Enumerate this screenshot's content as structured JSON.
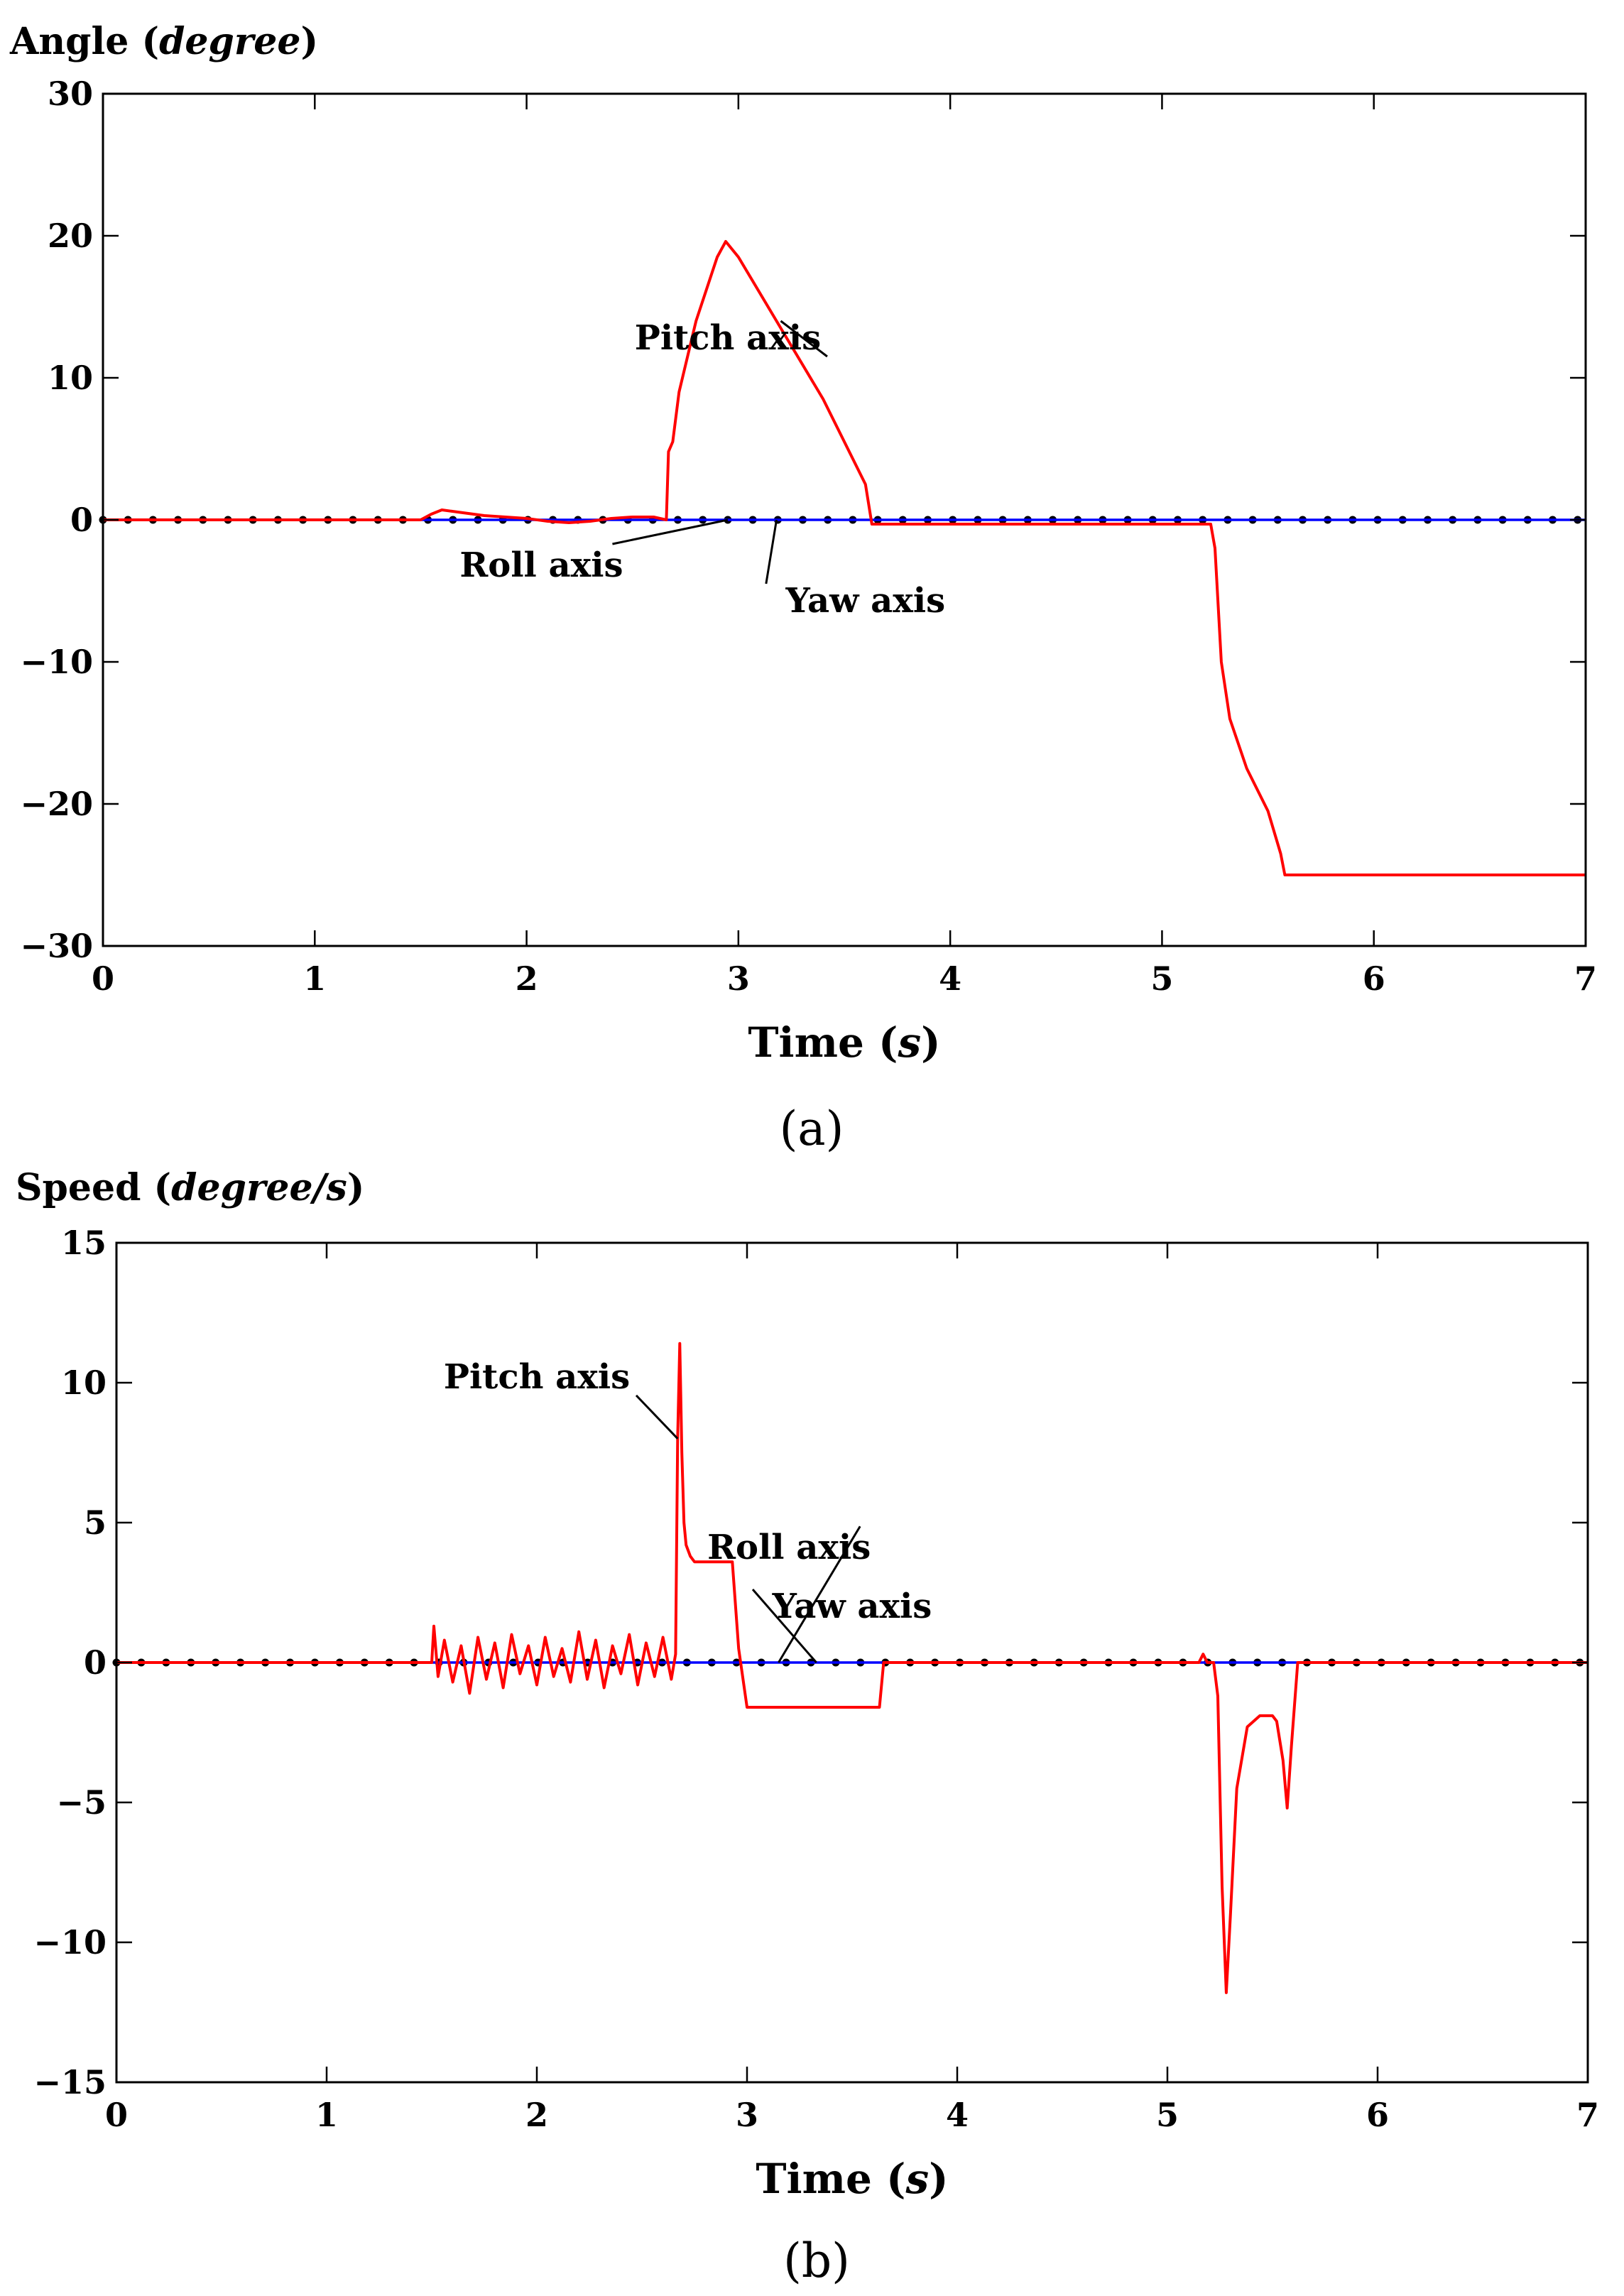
{
  "chart_data": [
    {
      "type": "line",
      "panel_label": "(a)",
      "ylabel": "Angle (degree)",
      "ylabel_plain": "Angle (",
      "ylabel_italic": "degree",
      "ylabel_close": ")",
      "xlabel_plain": "Time (",
      "xlabel_italic": "s",
      "xlabel_close": ")",
      "xlim": [
        0,
        7
      ],
      "ylim": [
        -30,
        30
      ],
      "xticks": [
        0,
        1,
        2,
        3,
        4,
        5,
        6,
        7
      ],
      "yticks": [
        30,
        20,
        10,
        0,
        -10,
        -20,
        -30
      ],
      "xtick_labels": [
        "0",
        "1",
        "2",
        "3",
        "4",
        "5",
        "6",
        "7"
      ],
      "ytick_labels": [
        "30",
        "20",
        "10",
        "0",
        "−10",
        "−20",
        "−30"
      ],
      "grid": false,
      "series": [
        {
          "name": "Yaw axis",
          "color": "#000000",
          "style": "dotted-markers",
          "x": [
            0,
            7
          ],
          "y": [
            0,
            0
          ]
        },
        {
          "name": "Roll axis",
          "color": "#0000ff",
          "style": "solid",
          "x": [
            0,
            7
          ],
          "y": [
            0,
            0
          ]
        },
        {
          "name": "Pitch axis",
          "color": "#ff0000",
          "style": "solid",
          "x": [
            0,
            1.5,
            1.55,
            1.6,
            1.65,
            1.7,
            1.8,
            1.9,
            2.0,
            2.1,
            2.2,
            2.3,
            2.4,
            2.5,
            2.6,
            2.66,
            2.67,
            2.69,
            2.72,
            2.8,
            2.9,
            2.94,
            3.0,
            3.2,
            3.4,
            3.6,
            3.63,
            4.0,
            4.5,
            5.0,
            5.23,
            5.25,
            5.28,
            5.32,
            5.4,
            5.5,
            5.56,
            5.58,
            6.0,
            6.5,
            7.0
          ],
          "y": [
            0,
            0,
            0.4,
            0.7,
            0.6,
            0.5,
            0.3,
            0.2,
            0.1,
            -0.1,
            -0.2,
            -0.1,
            0.1,
            0.2,
            0.2,
            0,
            4.8,
            5.5,
            9,
            14,
            18.5,
            19.6,
            18.5,
            13.5,
            8.5,
            2.5,
            -0.3,
            -0.3,
            -0.3,
            -0.3,
            -0.3,
            -2,
            -10,
            -14,
            -17.5,
            -20.5,
            -23.5,
            -25,
            -25,
            -25,
            -25
          ]
        }
      ],
      "annotations": [
        {
          "text": "Pitch axis",
          "x": 2.95,
          "y": 12,
          "target_x": 3.2,
          "target_y": 14
        },
        {
          "text": "Roll axis",
          "x": 2.07,
          "y": -4,
          "target_x": 2.95,
          "target_y": 0
        },
        {
          "text": "Yaw axis",
          "x": 3.6,
          "y": -6.5,
          "target_x": 3.18,
          "target_y": 0
        }
      ]
    },
    {
      "type": "line",
      "panel_label": "(b)",
      "ylabel": "Speed (degree/s)",
      "ylabel_plain": "Speed (",
      "ylabel_italic": "degree/s",
      "ylabel_close": ")",
      "xlabel_plain": "Time (",
      "xlabel_italic": "s",
      "xlabel_close": ")",
      "xlim": [
        0,
        7
      ],
      "ylim": [
        -15,
        15
      ],
      "xticks": [
        0,
        1,
        2,
        3,
        4,
        5,
        6,
        7
      ],
      "yticks": [
        15,
        10,
        5,
        0,
        -5,
        -10,
        -15
      ],
      "xtick_labels": [
        "0",
        "1",
        "2",
        "3",
        "4",
        "5",
        "6",
        "7"
      ],
      "ytick_labels": [
        "15",
        "10",
        "5",
        "0",
        "−5",
        "−10",
        "−15"
      ],
      "grid": false,
      "series": [
        {
          "name": "Yaw axis",
          "color": "#000000",
          "style": "dotted-markers",
          "x": [
            0,
            7
          ],
          "y": [
            0,
            0
          ]
        },
        {
          "name": "Roll axis",
          "color": "#0000ff",
          "style": "solid",
          "x": [
            0,
            7
          ],
          "y": [
            0,
            0
          ]
        },
        {
          "name": "Pitch axis",
          "color": "#ff0000",
          "style": "solid",
          "x": [
            0,
            1.5,
            1.51,
            1.53,
            1.56,
            1.6,
            1.64,
            1.68,
            1.72,
            1.76,
            1.8,
            1.84,
            1.88,
            1.92,
            1.96,
            2.0,
            2.04,
            2.08,
            2.12,
            2.16,
            2.2,
            2.24,
            2.28,
            2.32,
            2.36,
            2.4,
            2.44,
            2.48,
            2.52,
            2.56,
            2.6,
            2.64,
            2.66,
            2.67,
            2.68,
            2.69,
            2.7,
            2.71,
            2.73,
            2.75,
            2.8,
            2.9,
            2.93,
            2.96,
            3.0,
            3.3,
            3.6,
            3.63,
            3.65,
            4.0,
            4.5,
            5.0,
            5.15,
            5.17,
            5.19,
            5.22,
            5.24,
            5.26,
            5.28,
            5.3,
            5.33,
            5.38,
            5.44,
            5.5,
            5.52,
            5.55,
            5.57,
            5.59,
            5.62,
            6.0,
            6.5,
            7.0
          ],
          "y": [
            0,
            0,
            1.3,
            -0.5,
            0.8,
            -0.7,
            0.6,
            -1.1,
            0.9,
            -0.6,
            0.7,
            -0.9,
            1.0,
            -0.4,
            0.6,
            -0.8,
            0.9,
            -0.5,
            0.5,
            -0.7,
            1.1,
            -0.6,
            0.8,
            -0.9,
            0.6,
            -0.4,
            1.0,
            -0.8,
            0.7,
            -0.5,
            0.9,
            -0.6,
            0.3,
            8,
            11.4,
            7.5,
            5,
            4.2,
            3.8,
            3.6,
            3.6,
            3.6,
            3.6,
            0.5,
            -1.6,
            -1.6,
            -1.6,
            -1.6,
            0,
            0,
            0,
            0,
            0,
            0.3,
            0,
            0,
            -1.2,
            -8,
            -11.8,
            -9,
            -4.5,
            -2.3,
            -1.9,
            -1.9,
            -2.1,
            -3.5,
            -5.2,
            -3,
            0,
            0,
            0,
            0
          ]
        }
      ],
      "annotations": [
        {
          "text": "Pitch axis",
          "x": 2.0,
          "y": 9.8,
          "target_x": 2.67,
          "target_y": 8
        },
        {
          "text": "Roll axis",
          "x": 3.2,
          "y": 3.7,
          "target_x": 3.15,
          "target_y": 0
        },
        {
          "text": "Yaw axis",
          "x": 3.5,
          "y": 1.6,
          "target_x": 3.33,
          "target_y": 0
        }
      ]
    }
  ]
}
